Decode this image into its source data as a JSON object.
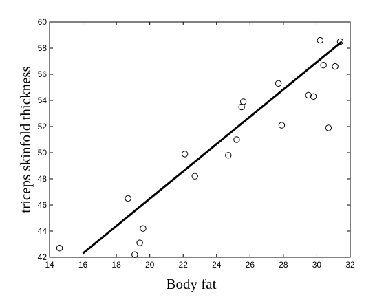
{
  "chart_data": {
    "type": "scatter",
    "title": "",
    "xlabel": "Body fat",
    "ylabel": "triceps skinfold thickness",
    "xlim": [
      14,
      32
    ],
    "ylim": [
      42,
      60
    ],
    "x_ticks": [
      "14",
      "16",
      "18",
      "20",
      "22",
      "24",
      "26",
      "28",
      "30",
      "32"
    ],
    "y_ticks": [
      "42",
      "44",
      "46",
      "48",
      "50",
      "52",
      "54",
      "56",
      "58",
      "60"
    ],
    "grid": false,
    "legend": "none",
    "series": [
      {
        "kind": "scatter",
        "marker": "open-circle",
        "color": "#000000",
        "x": [
          14.6,
          18.7,
          19.1,
          19.4,
          19.6,
          22.1,
          22.7,
          24.7,
          25.2,
          25.5,
          25.6,
          27.7,
          27.9,
          29.5,
          29.8,
          30.2,
          30.4,
          30.7,
          31.1,
          31.4
        ],
        "y": [
          42.7,
          46.5,
          42.2,
          43.1,
          44.2,
          49.9,
          48.2,
          49.8,
          51.0,
          53.5,
          53.9,
          55.3,
          52.1,
          54.4,
          54.3,
          58.6,
          56.7,
          51.9,
          56.6,
          58.5
        ]
      },
      {
        "kind": "line",
        "color": "#000000",
        "x": [
          16.0,
          31.5
        ],
        "y": [
          42.3,
          58.5
        ]
      }
    ]
  }
}
